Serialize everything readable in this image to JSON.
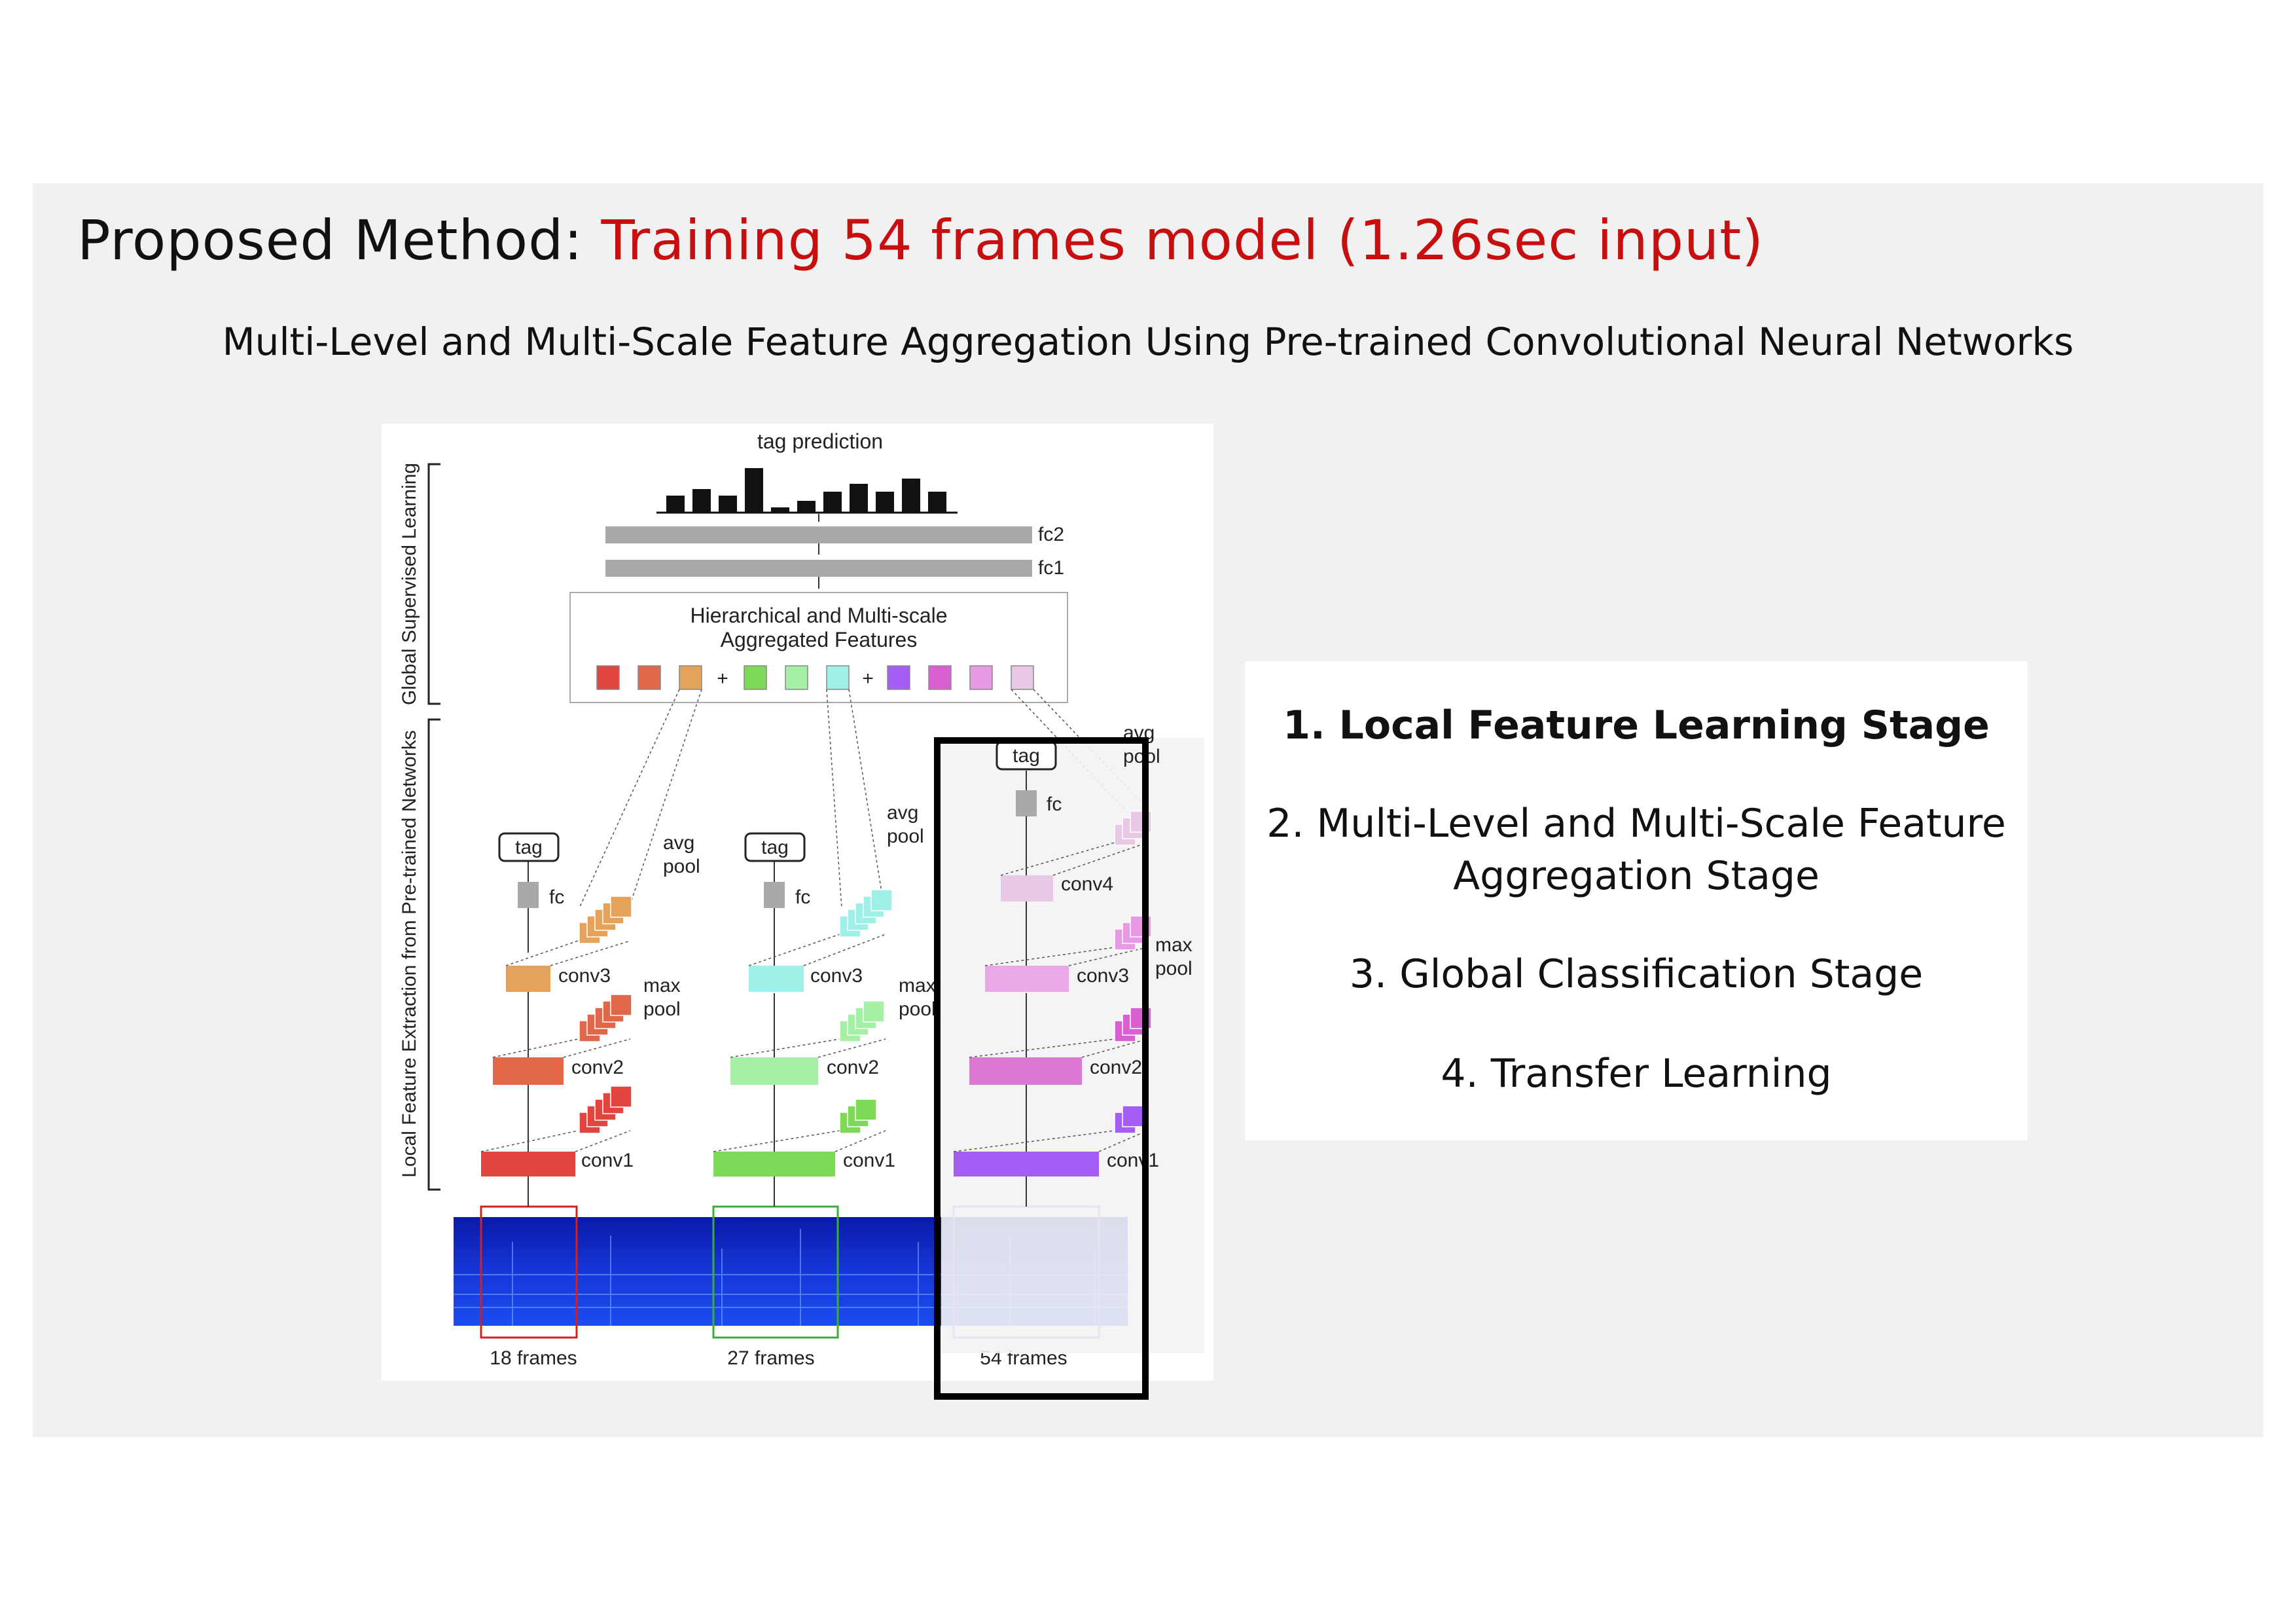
{
  "slide": {
    "title_prefix": "Proposed Method: ",
    "title_highlight": "Training 54 frames model (1.26sec input)",
    "subtitle": "Multi-Level and Multi-Scale Feature Aggregation Using Pre-trained Convolutional Neural Networks",
    "highlight_color": "#c80f0f"
  },
  "figure": {
    "tag_prediction": "tag prediction",
    "fc2": "fc2",
    "fc1": "fc1",
    "agg_line1": "Hierarchical and Multi-scale",
    "agg_line2": "Aggregated Features",
    "plus": "+",
    "left_label_global": "Global Supervised Learning",
    "left_label_local": "Local Feature Extraction from Pre-trained Networks",
    "tag": "tag",
    "fc": "fc",
    "avg": "avg",
    "pool": "pool",
    "max": "max",
    "conv1": "conv1",
    "conv2": "conv2",
    "conv3": "conv3",
    "conv4": "conv4",
    "frames_18": "18 frames",
    "frames_27": "27 frames",
    "frames_54": "54 frames",
    "colors": {
      "red": "#e0453e",
      "orange": "#e5a35a",
      "green": "#7ed957",
      "mint": "#9ff0e8",
      "violet": "#a45ef5",
      "pink": "#e07ad8",
      "lilac": "#e8c8e4"
    }
  },
  "steps": {
    "s1": "1.  Local Feature Learning Stage",
    "s2a": "2.  Multi-Level and Multi-Scale Feature",
    "s2b": "Aggregation Stage",
    "s3": "3.  Global Classification Stage",
    "s4": "4.  Transfer Learning"
  }
}
